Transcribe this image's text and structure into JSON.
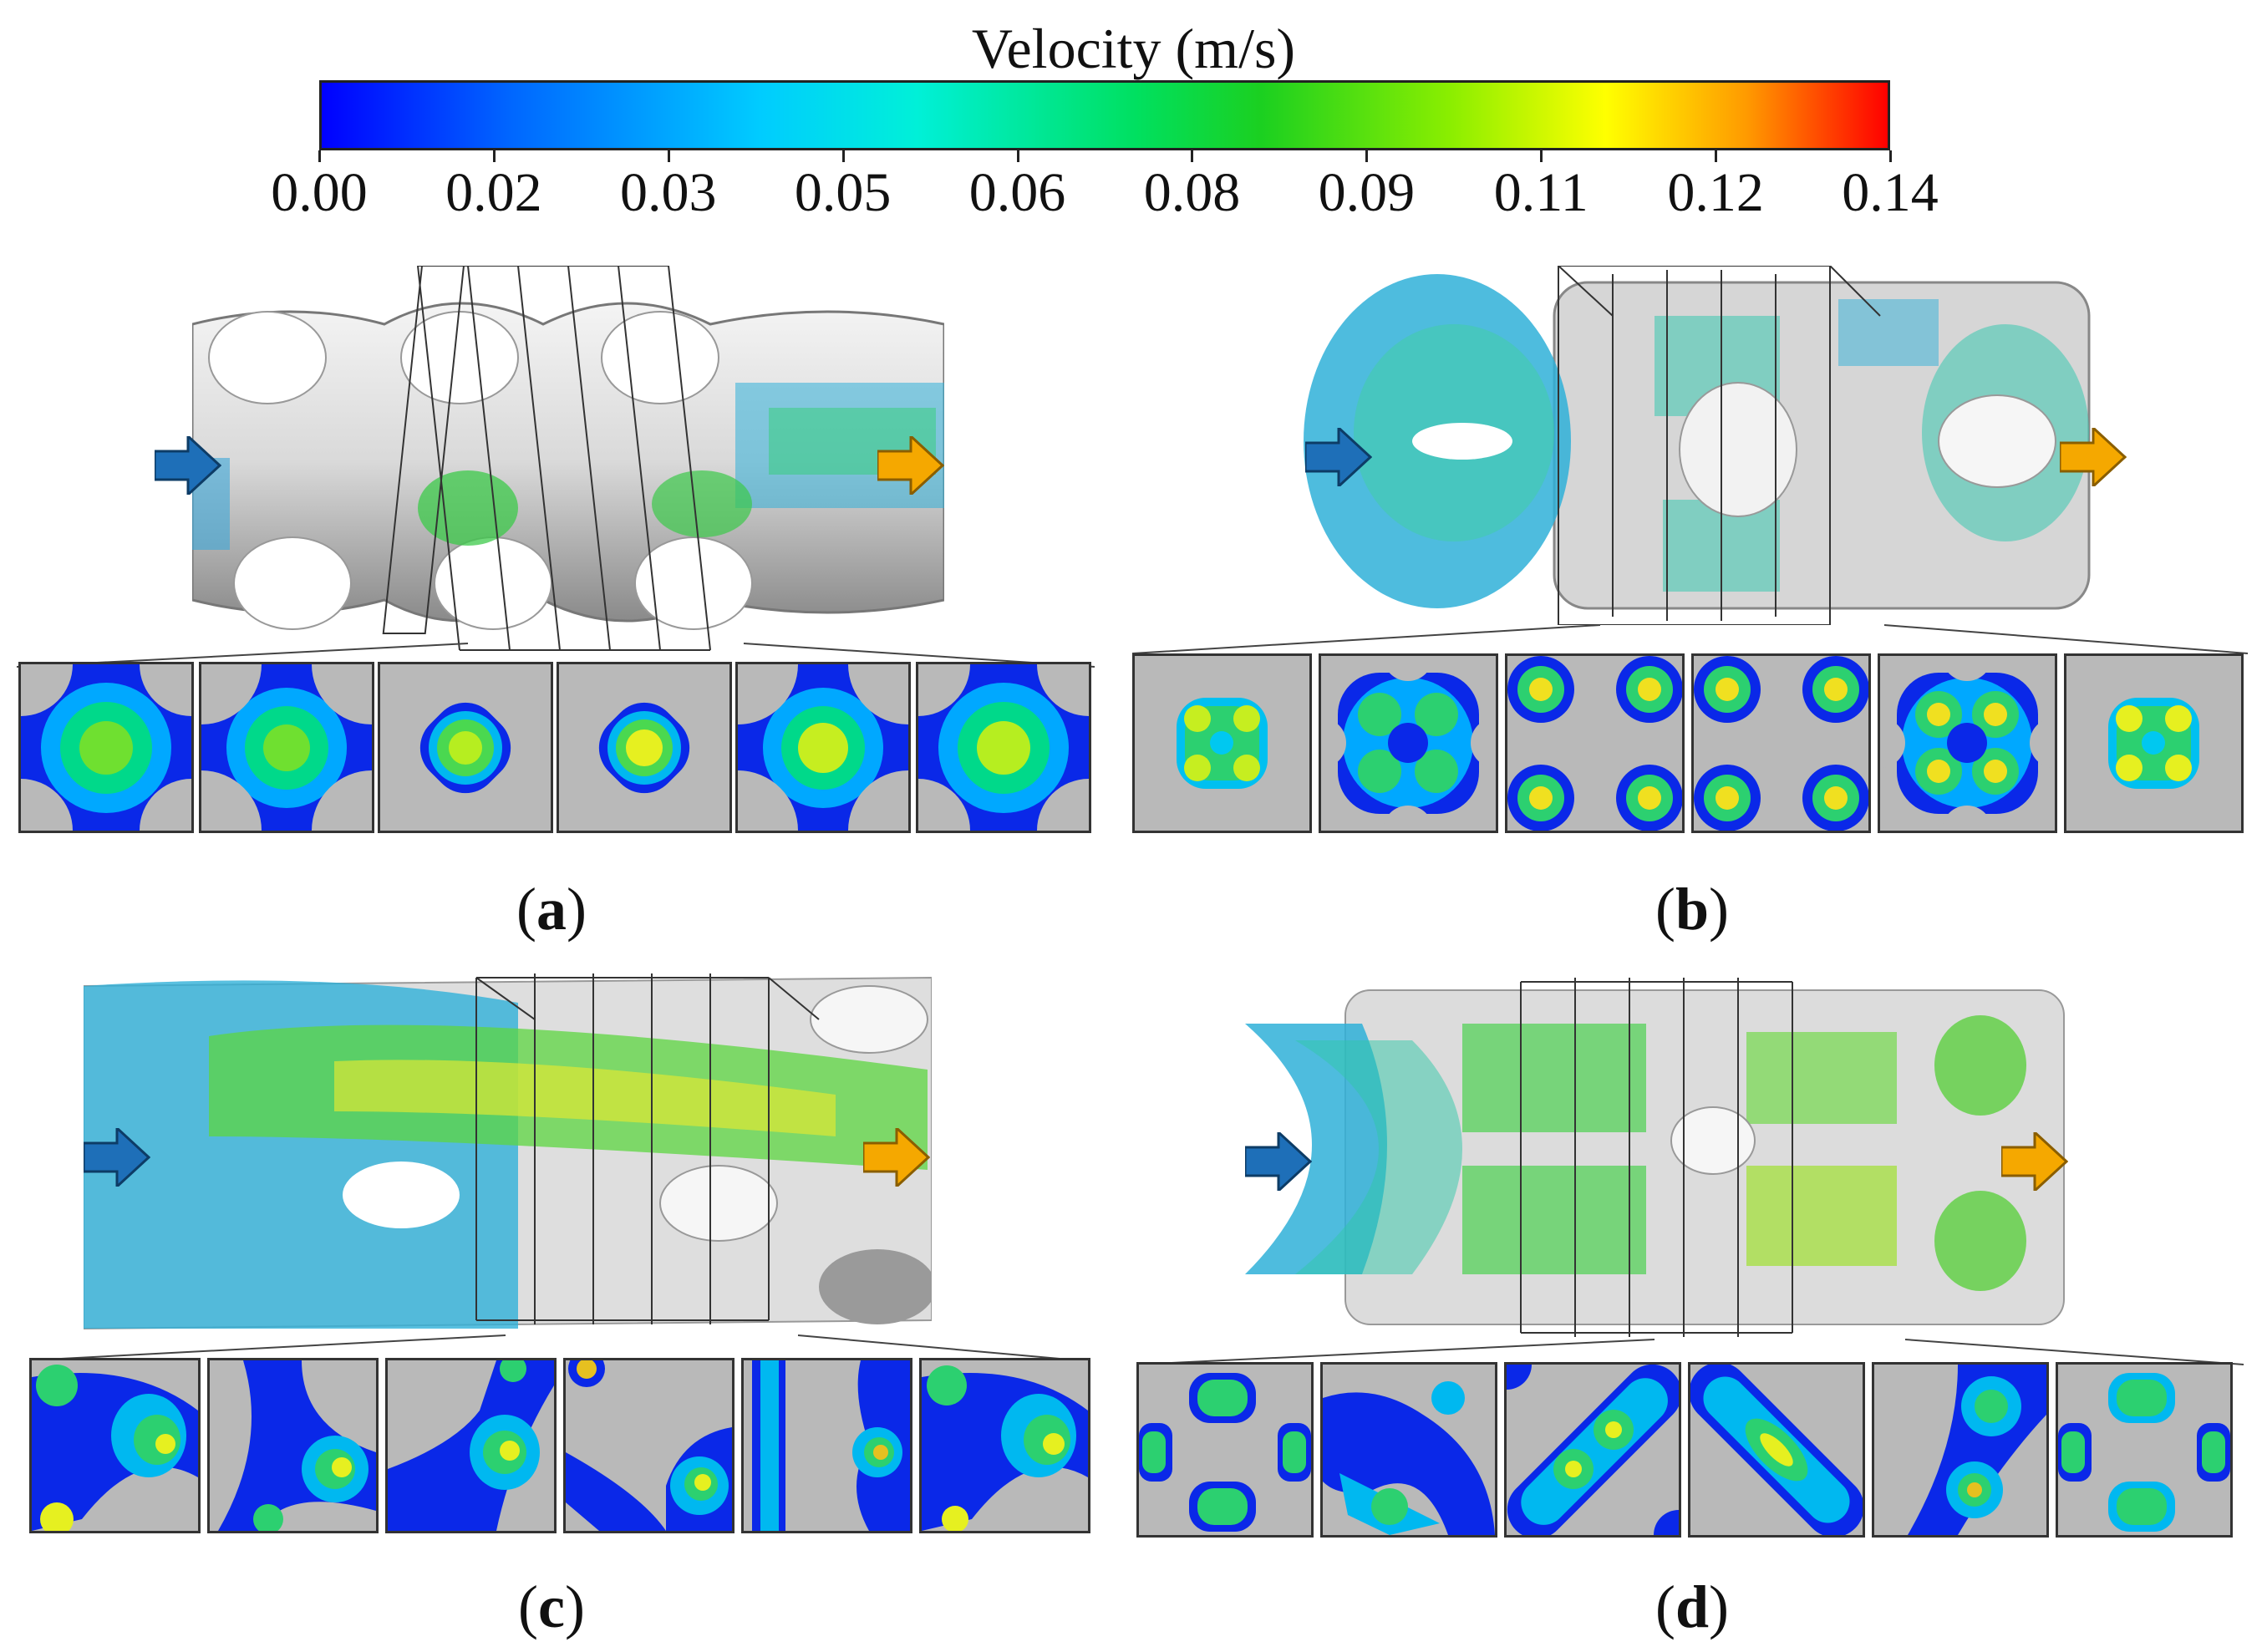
{
  "colorbar": {
    "title": "Velocity (m/s)",
    "min": 0.0,
    "max": 0.14,
    "ticks": [
      "0.00",
      "0.02",
      "0.03",
      "0.05",
      "0.06",
      "0.08",
      "0.09",
      "0.11",
      "0.12",
      "0.14"
    ],
    "colors": [
      "#0000ff",
      "#00ccff",
      "#00e060",
      "#ffff00",
      "#ff0000"
    ]
  },
  "panels": [
    {
      "id": "a",
      "label_open": "(",
      "label_letter": "a",
      "label_close": ")"
    },
    {
      "id": "b",
      "label_open": "(",
      "label_letter": "b",
      "label_close": ")"
    },
    {
      "id": "c",
      "label_open": "(",
      "label_letter": "c",
      "label_close": ")"
    },
    {
      "id": "d",
      "label_open": "(",
      "label_letter": "d",
      "label_close": ")"
    }
  ],
  "arrows": {
    "inlet_color": "#1e6fb8",
    "outlet_color": "#f5a800"
  }
}
